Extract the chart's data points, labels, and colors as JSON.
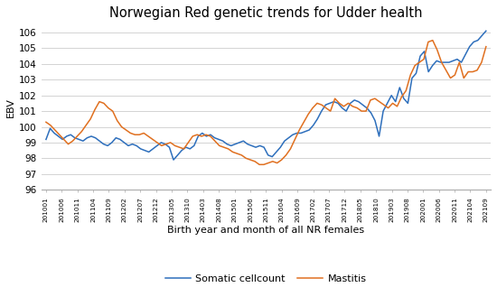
{
  "title": "Norwegian Red genetic trends for Udder health",
  "xlabel": "Birth year and month of all NR females",
  "ylabel": "EBV",
  "ylim": [
    96,
    106.5
  ],
  "yticks": [
    96,
    97,
    98,
    99,
    100,
    101,
    102,
    103,
    104,
    105,
    106
  ],
  "legend_labels": [
    "Somatic cellcount",
    "Mastitis"
  ],
  "line_colors": [
    "#2e6fbc",
    "#e07020"
  ],
  "xtick_labels": [
    "201001",
    "201006",
    "201011",
    "201104",
    "201109",
    "201202",
    "201207",
    "201212",
    "201305",
    "201310",
    "201403",
    "201408",
    "201501",
    "201506",
    "201511",
    "201604",
    "201609",
    "201702",
    "201707",
    "201712",
    "201805",
    "201810",
    "201903",
    "201908",
    "202001",
    "202006",
    "202011",
    "202104",
    "202109"
  ],
  "somatic_cellcount": [
    99.2,
    99.9,
    99.6,
    99.4,
    99.2,
    99.4,
    99.5,
    99.3,
    99.2,
    99.1,
    99.3,
    99.4,
    99.3,
    99.1,
    98.9,
    98.8,
    99.0,
    99.3,
    99.2,
    99.0,
    98.8,
    98.9,
    98.8,
    98.6,
    98.5,
    98.4,
    98.6,
    98.8,
    99.0,
    98.9,
    98.7,
    97.9,
    98.2,
    98.5,
    98.7,
    98.6,
    98.8,
    99.4,
    99.6,
    99.4,
    99.5,
    99.3,
    99.2,
    99.1,
    98.9,
    98.8,
    98.9,
    99.0,
    99.1,
    98.9,
    98.8,
    98.7,
    98.8,
    98.7,
    98.2,
    98.1,
    98.4,
    98.7,
    99.1,
    99.3,
    99.5,
    99.6,
    99.6,
    99.7,
    99.8,
    100.1,
    100.5,
    101.0,
    101.4,
    101.5,
    101.6,
    101.5,
    101.2,
    101.0,
    101.5,
    101.7,
    101.6,
    101.4,
    101.2,
    100.9,
    100.4,
    99.4,
    101.0,
    101.5,
    102.0,
    101.6,
    102.5,
    101.8,
    101.5,
    103.1,
    103.4,
    104.5,
    104.8,
    103.5,
    103.9,
    104.2,
    104.1,
    104.1,
    104.1,
    104.2,
    104.3,
    104.1,
    104.6,
    105.1,
    105.4,
    105.5,
    105.8,
    106.1
  ],
  "mastitis": [
    100.3,
    100.1,
    99.8,
    99.5,
    99.2,
    98.9,
    99.1,
    99.4,
    99.7,
    100.1,
    100.5,
    101.1,
    101.6,
    101.5,
    101.2,
    101.0,
    100.4,
    100.0,
    99.8,
    99.6,
    99.5,
    99.5,
    99.6,
    99.4,
    99.2,
    99.0,
    98.8,
    98.9,
    99.0,
    98.8,
    98.7,
    98.6,
    99.0,
    99.4,
    99.5,
    99.4,
    99.5,
    99.4,
    99.1,
    98.8,
    98.7,
    98.6,
    98.4,
    98.3,
    98.2,
    98.0,
    97.9,
    97.8,
    97.6,
    97.6,
    97.7,
    97.8,
    97.7,
    97.9,
    98.2,
    98.6,
    99.2,
    99.8,
    100.3,
    100.8,
    101.2,
    101.5,
    101.4,
    101.2,
    101.0,
    101.8,
    101.5,
    101.3,
    101.5,
    101.3,
    101.2,
    101.0,
    101.0,
    101.7,
    101.8,
    101.6,
    101.4,
    101.2,
    101.5,
    101.3,
    101.9,
    102.3,
    103.3,
    103.9,
    104.1,
    104.3,
    105.4,
    105.5,
    104.9,
    104.1,
    103.6,
    103.1,
    103.3,
    104.1,
    103.1,
    103.5,
    103.5,
    103.6,
    104.1,
    105.1
  ],
  "background_color": "#ffffff",
  "grid_color": "#cccccc"
}
